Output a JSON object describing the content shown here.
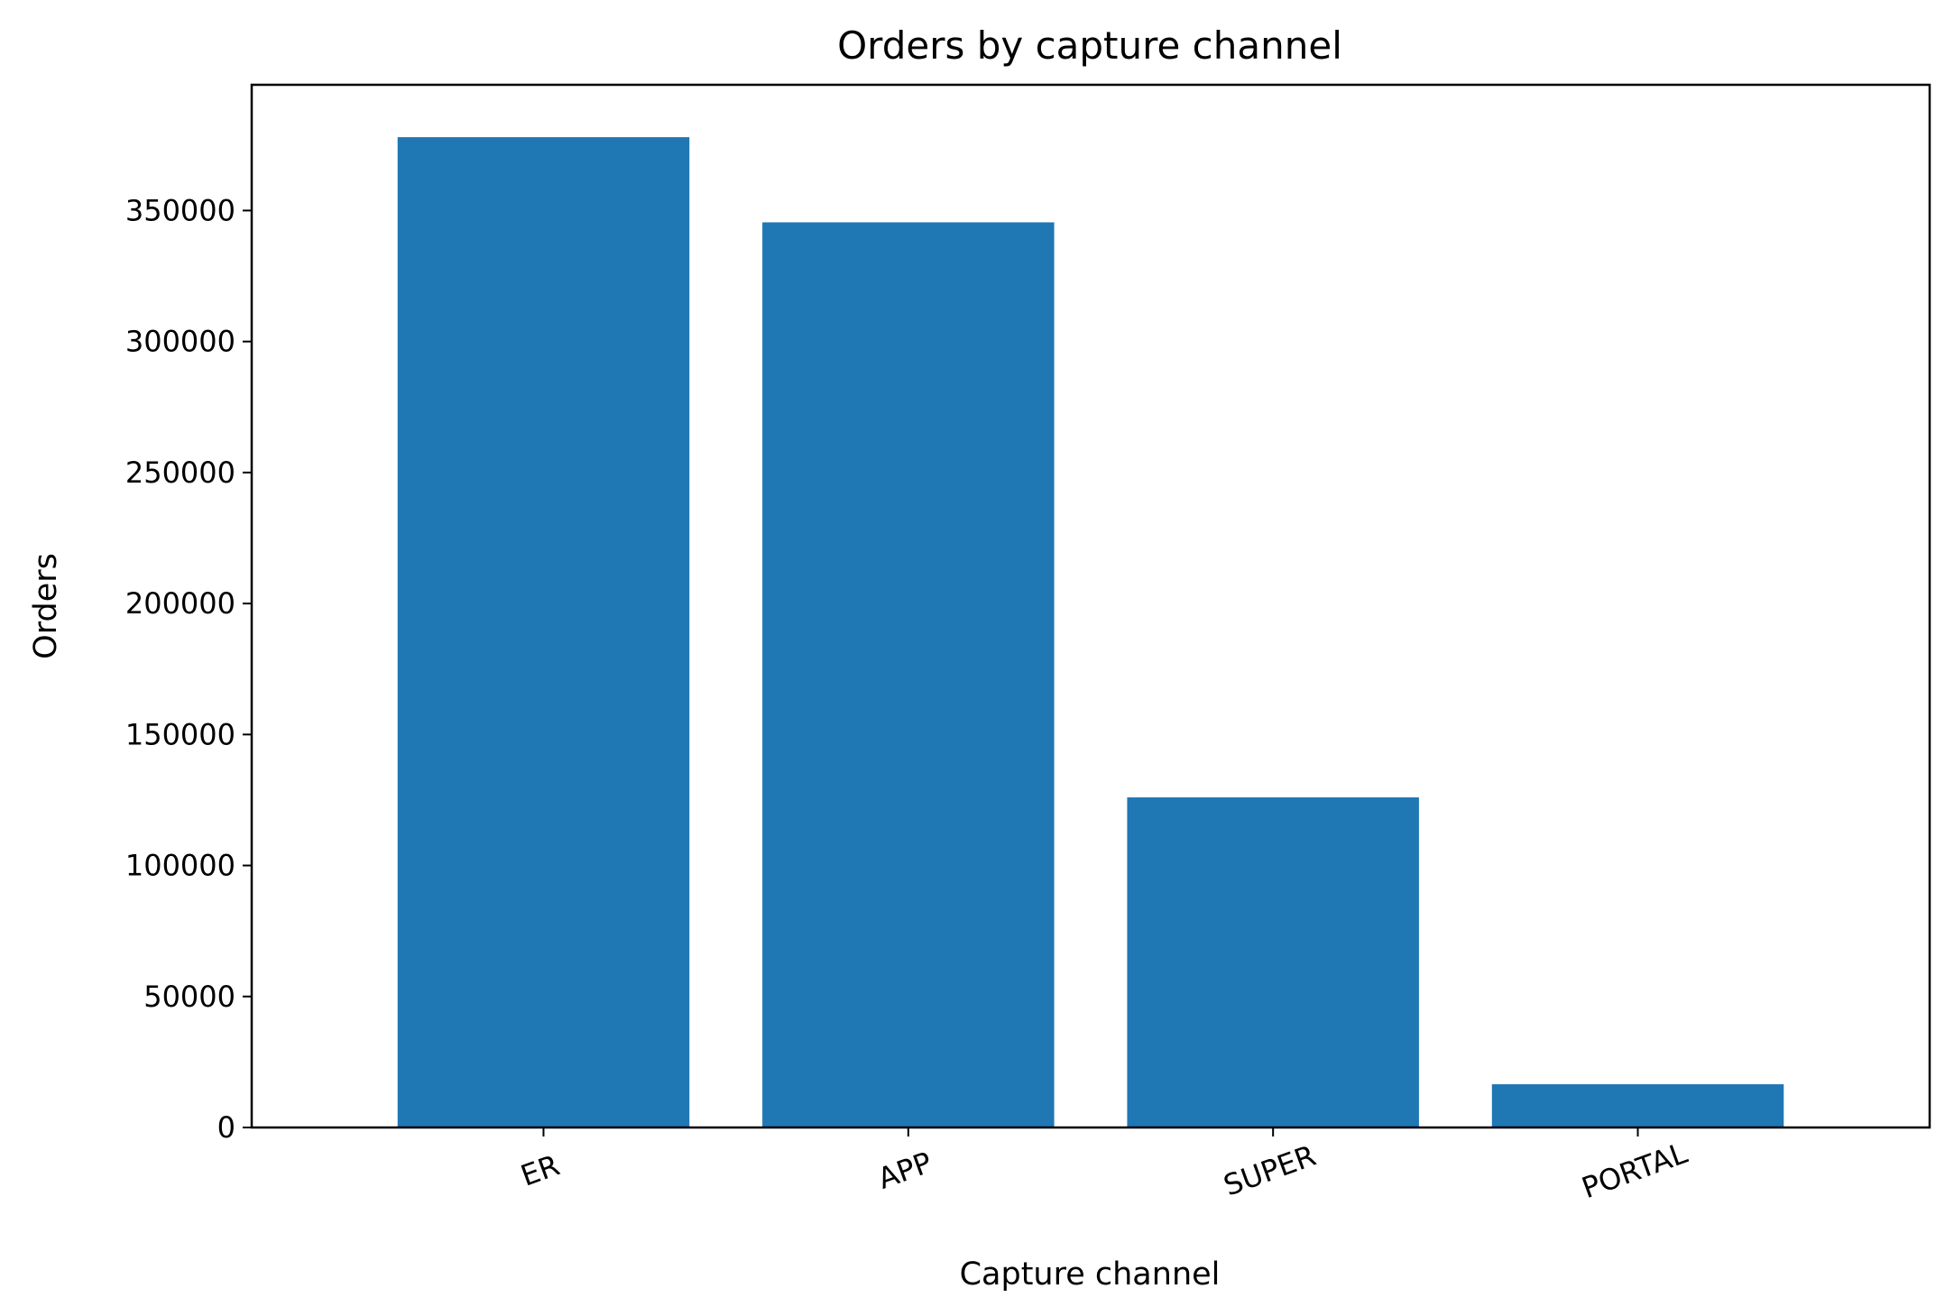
{
  "chart_data": {
    "type": "bar",
    "title": "Orders by capture channel",
    "xlabel": "Capture channel",
    "ylabel": "Orders",
    "categories": [
      "ER",
      "APP",
      "SUPER",
      "PORTAL"
    ],
    "values": [
      378000,
      345500,
      126000,
      16500
    ],
    "ylim": [
      0,
      398000
    ],
    "yticks": [
      0,
      50000,
      100000,
      150000,
      200000,
      250000,
      300000,
      350000
    ],
    "xtick_rotation": -20,
    "bar_color": "#1f77b4",
    "grid": false,
    "legend": "none"
  }
}
